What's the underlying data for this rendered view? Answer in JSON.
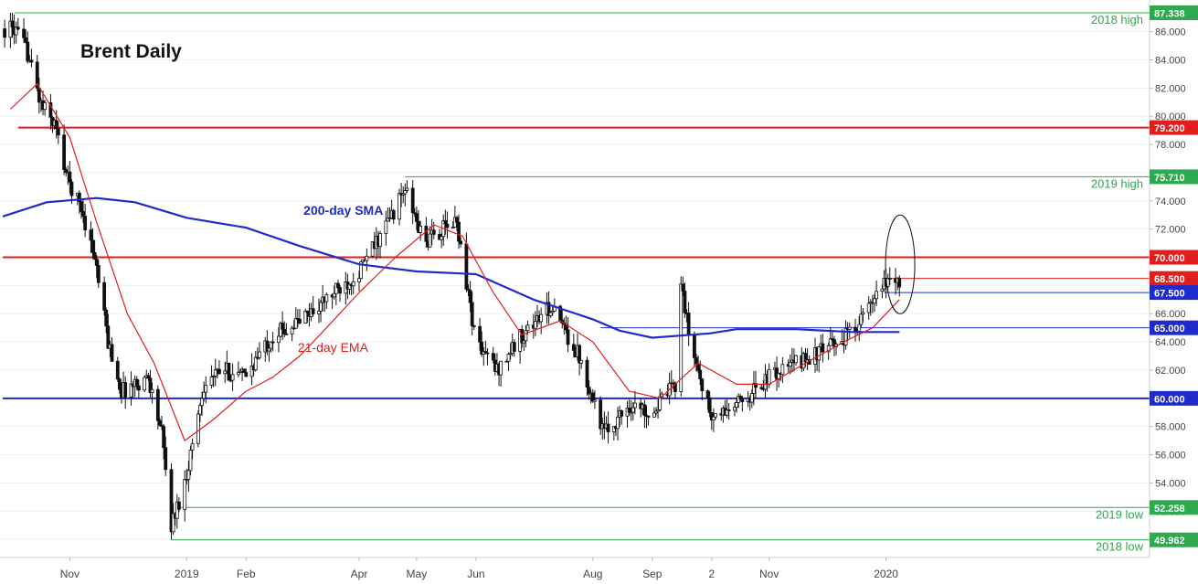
{
  "chart_data": {
    "type": "candlestick",
    "title": "Brent Daily",
    "ylim": [
      49,
      88
    ],
    "y_ticks": [
      {
        "label": "86.000",
        "value": 86
      },
      {
        "label": "84.000",
        "value": 84
      },
      {
        "label": "82.000",
        "value": 82
      },
      {
        "label": "80.000",
        "value": 80
      },
      {
        "label": "78.000",
        "value": 78
      },
      {
        "label": "76.000",
        "value": 76
      },
      {
        "label": "74.000",
        "value": 74
      },
      {
        "label": "72.000",
        "value": 72
      },
      {
        "label": "70.000",
        "value": 70
      },
      {
        "label": "68.000",
        "value": 68
      },
      {
        "label": "66.000",
        "value": 66
      },
      {
        "label": "64.000",
        "value": 64
      },
      {
        "label": "62.000",
        "value": 62
      },
      {
        "label": "60.000",
        "value": 60
      },
      {
        "label": "58.000",
        "value": 58
      },
      {
        "label": "56.000",
        "value": 56
      },
      {
        "label": "54.000",
        "value": 54
      },
      {
        "label": "52.000",
        "value": 52
      },
      {
        "label": "50.000",
        "value": 50
      }
    ],
    "x_ticks": [
      {
        "label": "Nov",
        "date": "2018-11-01"
      },
      {
        "label": "2019",
        "date": "2019-01-01"
      },
      {
        "label": "Feb",
        "date": "2019-02-01"
      },
      {
        "label": "Apr",
        "date": "2019-04-01"
      },
      {
        "label": "May",
        "date": "2019-05-01"
      },
      {
        "label": "Jun",
        "date": "2019-06-01"
      },
      {
        "label": "Aug",
        "date": "2019-08-01"
      },
      {
        "label": "Sep",
        "date": "2019-09-01"
      },
      {
        "label": "2",
        "date": "2019-10-02"
      },
      {
        "label": "Nov",
        "date": "2019-11-01"
      },
      {
        "label": "2020",
        "date": "2020-01-01"
      }
    ],
    "price_anchors": [
      {
        "date": "2018-10-03",
        "value": 86.2
      },
      {
        "date": "2018-10-10",
        "value": 84.5
      },
      {
        "date": "2018-10-17",
        "value": 80.8
      },
      {
        "date": "2018-10-24",
        "value": 79.5
      },
      {
        "date": "2018-10-31",
        "value": 75.5
      },
      {
        "date": "2018-11-07",
        "value": 73.5
      },
      {
        "date": "2018-11-14",
        "value": 70.0
      },
      {
        "date": "2018-11-21",
        "value": 64.0
      },
      {
        "date": "2018-11-28",
        "value": 60.5
      },
      {
        "date": "2018-12-05",
        "value": 61.0
      },
      {
        "date": "2018-12-12",
        "value": 61.5
      },
      {
        "date": "2018-12-19",
        "value": 57.5
      },
      {
        "date": "2018-12-24",
        "value": 51.0
      },
      {
        "date": "2018-12-31",
        "value": 54.0
      },
      {
        "date": "2019-01-10",
        "value": 61.0
      },
      {
        "date": "2019-01-20",
        "value": 62.0
      },
      {
        "date": "2019-01-31",
        "value": 61.5
      },
      {
        "date": "2019-02-15",
        "value": 64.5
      },
      {
        "date": "2019-03-01",
        "value": 65.5
      },
      {
        "date": "2019-03-15",
        "value": 67.0
      },
      {
        "date": "2019-04-01",
        "value": 69.0
      },
      {
        "date": "2019-04-12",
        "value": 71.5
      },
      {
        "date": "2019-04-25",
        "value": 74.8
      },
      {
        "date": "2019-05-05",
        "value": 71.0
      },
      {
        "date": "2019-05-15",
        "value": 72.0
      },
      {
        "date": "2019-05-22",
        "value": 72.5
      },
      {
        "date": "2019-06-01",
        "value": 64.0
      },
      {
        "date": "2019-06-12",
        "value": 62.0
      },
      {
        "date": "2019-06-25",
        "value": 64.5
      },
      {
        "date": "2019-07-10",
        "value": 66.5
      },
      {
        "date": "2019-07-25",
        "value": 63.0
      },
      {
        "date": "2019-08-07",
        "value": 57.5
      },
      {
        "date": "2019-08-20",
        "value": 59.5
      },
      {
        "date": "2019-09-01",
        "value": 59.0
      },
      {
        "date": "2019-09-13",
        "value": 61.0
      },
      {
        "date": "2019-09-16",
        "value": 68.5
      },
      {
        "date": "2019-09-20",
        "value": 64.5
      },
      {
        "date": "2019-10-02",
        "value": 58.5
      },
      {
        "date": "2019-10-15",
        "value": 59.5
      },
      {
        "date": "2019-11-01",
        "value": 61.5
      },
      {
        "date": "2019-11-15",
        "value": 62.5
      },
      {
        "date": "2019-12-01",
        "value": 63.5
      },
      {
        "date": "2019-12-12",
        "value": 64.5
      },
      {
        "date": "2019-12-24",
        "value": 66.5
      },
      {
        "date": "2020-01-03",
        "value": 68.6
      },
      {
        "date": "2020-01-08",
        "value": 68.3
      }
    ],
    "ema_21_anchors": [
      {
        "date": "2018-10-01",
        "value": 80.5
      },
      {
        "date": "2018-10-15",
        "value": 82.3
      },
      {
        "date": "2018-11-01",
        "value": 78.5
      },
      {
        "date": "2018-11-15",
        "value": 72.5
      },
      {
        "date": "2018-12-01",
        "value": 66.0
      },
      {
        "date": "2018-12-15",
        "value": 62.5
      },
      {
        "date": "2018-12-31",
        "value": 57.0
      },
      {
        "date": "2019-01-15",
        "value": 58.5
      },
      {
        "date": "2019-02-01",
        "value": 60.5
      },
      {
        "date": "2019-02-15",
        "value": 61.5
      },
      {
        "date": "2019-03-01",
        "value": 63.0
      },
      {
        "date": "2019-03-15",
        "value": 65.0
      },
      {
        "date": "2019-04-01",
        "value": 67.5
      },
      {
        "date": "2019-04-20",
        "value": 70.0
      },
      {
        "date": "2019-05-10",
        "value": 72.3
      },
      {
        "date": "2019-05-25",
        "value": 71.5
      },
      {
        "date": "2019-06-10",
        "value": 67.5
      },
      {
        "date": "2019-06-25",
        "value": 64.5
      },
      {
        "date": "2019-07-15",
        "value": 65.5
      },
      {
        "date": "2019-08-01",
        "value": 64.0
      },
      {
        "date": "2019-08-20",
        "value": 60.5
      },
      {
        "date": "2019-09-05",
        "value": 60.0
      },
      {
        "date": "2019-09-25",
        "value": 62.5
      },
      {
        "date": "2019-10-15",
        "value": 61.0
      },
      {
        "date": "2019-11-01",
        "value": 61.0
      },
      {
        "date": "2019-11-20",
        "value": 62.5
      },
      {
        "date": "2019-12-10",
        "value": 64.0
      },
      {
        "date": "2019-12-25",
        "value": 65.0
      },
      {
        "date": "2020-01-08",
        "value": 67.0
      }
    ],
    "sma_200_anchors": [
      {
        "date": "2018-09-27",
        "value": 72.9
      },
      {
        "date": "2018-10-20",
        "value": 73.9
      },
      {
        "date": "2018-11-15",
        "value": 74.2
      },
      {
        "date": "2018-12-05",
        "value": 73.9
      },
      {
        "date": "2019-01-01",
        "value": 72.8
      },
      {
        "date": "2019-02-01",
        "value": 72.1
      },
      {
        "date": "2019-03-01",
        "value": 70.8
      },
      {
        "date": "2019-04-01",
        "value": 69.5
      },
      {
        "date": "2019-05-01",
        "value": 69.0
      },
      {
        "date": "2019-06-01",
        "value": 68.8
      },
      {
        "date": "2019-07-01",
        "value": 67.0
      },
      {
        "date": "2019-08-01",
        "value": 65.6
      },
      {
        "date": "2019-08-15",
        "value": 64.8
      },
      {
        "date": "2019-09-01",
        "value": 64.3
      },
      {
        "date": "2019-10-01",
        "value": 64.6
      },
      {
        "date": "2019-10-15",
        "value": 64.9
      },
      {
        "date": "2019-11-15",
        "value": 64.9
      },
      {
        "date": "2019-12-15",
        "value": 64.7
      },
      {
        "date": "2020-01-08",
        "value": 64.7
      }
    ],
    "horizontal_levels": [
      {
        "value": 87.338,
        "label": "87.338",
        "annotation": "2018 high",
        "style": "thin",
        "color": "#2fa84f",
        "start_date": "2018-10-03"
      },
      {
        "value": 79.2,
        "label": "79.200",
        "annotation": "",
        "style": "thick",
        "color": "#e01e1e",
        "start_date": "2018-10-05"
      },
      {
        "value": 75.71,
        "label": "75.710",
        "annotation": "2019 high",
        "style": "thin",
        "color": "#2fa84f",
        "start_date": "2019-04-25"
      },
      {
        "value": 70.0,
        "label": "70.000",
        "annotation": "",
        "style": "thick",
        "color": "#e01e1e",
        "start_date": "2018-09-27"
      },
      {
        "value": 68.5,
        "label": "68.500",
        "annotation": "",
        "style": "thin",
        "color": "#e01e1e",
        "start_date": "2020-01-03"
      },
      {
        "value": 67.5,
        "label": "67.500",
        "annotation": "",
        "style": "thin",
        "color": "#1f2ac8",
        "start_date": "2019-12-31"
      },
      {
        "value": 65.0,
        "label": "65.000",
        "annotation": "",
        "style": "thin",
        "color": "#1f2ac8",
        "start_date": "2019-08-05"
      },
      {
        "value": 60.0,
        "label": "60.000",
        "annotation": "",
        "style": "thick",
        "color": "#1f2ac8",
        "start_date": "2018-09-27"
      },
      {
        "value": 52.258,
        "label": "52.258",
        "annotation": "2019 low",
        "style": "thin",
        "color": "#2fa84f",
        "start_date": "2018-12-29"
      },
      {
        "value": 49.962,
        "label": "49.962",
        "annotation": "2018 low",
        "style": "thin",
        "color": "#2fa84f",
        "start_date": "2018-12-24"
      }
    ],
    "annotations": [
      {
        "text": "200-day SMA",
        "date": "2019-03-03",
        "value": 73.0,
        "color": "#1f2ac8"
      },
      {
        "text": "21-day EMA",
        "date": "2019-02-28",
        "value": 63.3,
        "color": "#e01e1e"
      }
    ],
    "highlight_circle": {
      "date": "2020-01-06",
      "value": 69.5
    }
  }
}
